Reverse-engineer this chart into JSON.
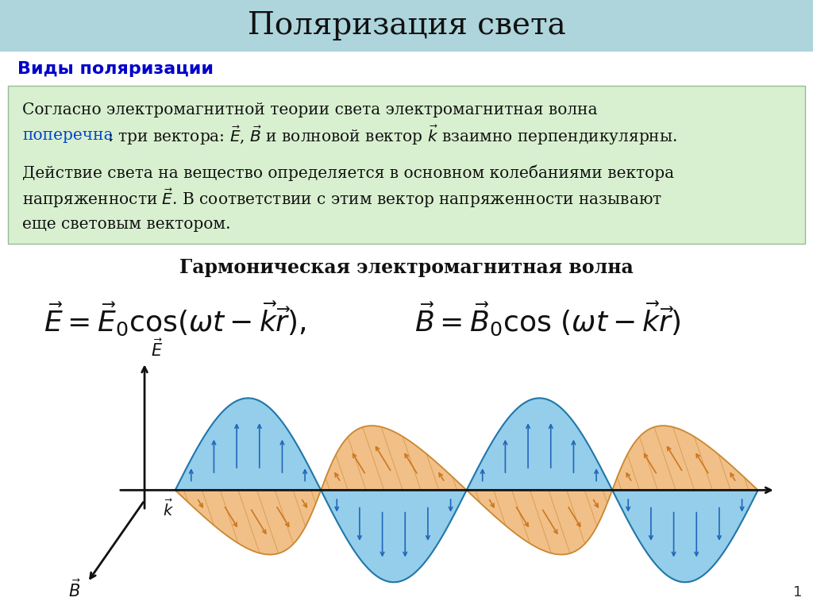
{
  "title": "Поляризация света",
  "title_bg_color": "#aed4dc",
  "section_header": "Виды поляризации",
  "section_header_color": "#0000cc",
  "green_box_color": "#d8f0d0",
  "harmonic_label": "Гармоническая электромагнитная волна",
  "wave_color_E": "#85c8e8",
  "wave_color_B": "#f0b878",
  "E_line_color": "#2277aa",
  "B_line_color": "#cc8833",
  "E_arrow_color": "#2266bb",
  "B_arrow_color": "#cc7722",
  "axis_color": "#111111",
  "page_number": "1",
  "background_color": "#ffffff"
}
